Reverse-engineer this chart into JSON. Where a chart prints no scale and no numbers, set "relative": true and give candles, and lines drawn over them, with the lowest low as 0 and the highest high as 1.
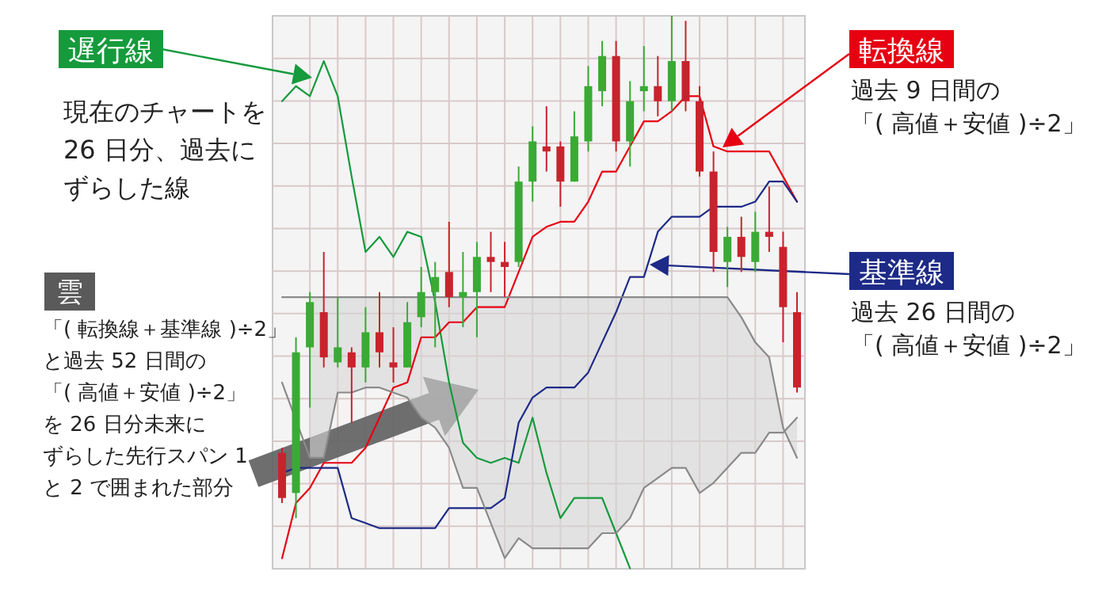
{
  "chart_data": {
    "type": "candlestick",
    "relative": true,
    "grid": true,
    "categories": [
      null,
      null,
      null,
      null,
      null,
      null,
      null,
      null,
      null,
      null,
      null,
      null,
      null,
      null,
      null,
      null,
      null,
      null,
      null,
      null,
      null,
      null,
      null,
      null,
      null,
      null,
      null,
      null,
      null,
      null,
      null,
      null,
      null,
      null,
      null,
      null,
      null,
      null
    ],
    "ohlc": [
      [
        0.13,
        0.14,
        0.03,
        0.04
      ],
      [
        0.05,
        0.36,
        0,
        0.33
      ],
      [
        0.34,
        0.45,
        0.22,
        0.43
      ],
      [
        0.41,
        0.53,
        0.3,
        0.32
      ],
      [
        0.31,
        0.44,
        0.3,
        0.34
      ],
      [
        0.33,
        0.34,
        0.19,
        0.3
      ],
      [
        0.3,
        0.42,
        0.27,
        0.37
      ],
      [
        0.37,
        0.45,
        0.3,
        0.33
      ],
      [
        0.31,
        0.38,
        0.27,
        0.3
      ],
      [
        0.3,
        0.43,
        0.3,
        0.39
      ],
      [
        0.4,
        0.5,
        0.38,
        0.45
      ],
      [
        0.45,
        0.51,
        0.34,
        0.48
      ],
      [
        0.49,
        0.59,
        0.42,
        0.44
      ],
      [
        0.44,
        0.53,
        0.38,
        0.45
      ],
      [
        0.45,
        0.55,
        0.36,
        0.52
      ],
      [
        0.52,
        0.57,
        0.45,
        0.51
      ],
      [
        0.51,
        0.55,
        0.44,
        0.5
      ],
      [
        0.51,
        0.7,
        0.5,
        0.67
      ],
      [
        0.67,
        0.78,
        0.63,
        0.75
      ],
      [
        0.74,
        0.82,
        0.69,
        0.73
      ],
      [
        0.74,
        0.75,
        0.62,
        0.67
      ],
      [
        0.67,
        0.81,
        0.67,
        0.76
      ],
      [
        0.75,
        0.9,
        0.73,
        0.86
      ],
      [
        0.85,
        0.95,
        0.82,
        0.92
      ],
      [
        0.92,
        0.95,
        0.73,
        0.75
      ],
      [
        0.75,
        0.87,
        0.7,
        0.83
      ],
      [
        0.85,
        0.94,
        0.81,
        0.86
      ],
      [
        0.86,
        0.92,
        0.8,
        0.83
      ],
      [
        0.83,
        1,
        0.81,
        0.91
      ],
      [
        0.91,
        0.99,
        0.81,
        0.83
      ],
      [
        0.83,
        0.86,
        0.68,
        0.69
      ],
      [
        0.69,
        0.73,
        0.49,
        0.53
      ],
      [
        0.51,
        0.58,
        0.46,
        0.56
      ],
      [
        0.56,
        0.6,
        0.49,
        0.52
      ],
      [
        0.51,
        0.61,
        0.49,
        0.57
      ],
      [
        0.57,
        0.66,
        0.53,
        0.56
      ],
      [
        0.54,
        0.57,
        0.35,
        0.42
      ],
      [
        0.41,
        0.45,
        0.25,
        0.26
      ]
    ],
    "colors": [
      "#c8232c",
      "#3aaa35",
      "#3aaa35",
      "#c8232c",
      "#3aaa35",
      "#c8232c",
      "#3aaa35",
      "#c8232c",
      "#c8232c",
      "#3aaa35",
      "#3aaa35",
      "#3aaa35",
      "#c8232c",
      "#3aaa35",
      "#3aaa35",
      "#c8232c",
      "#c8232c",
      "#3aaa35",
      "#3aaa35",
      "#c8232c",
      "#c8232c",
      "#3aaa35",
      "#3aaa35",
      "#3aaa35",
      "#c8232c",
      "#3aaa35",
      "#3aaa35",
      "#c8232c",
      "#3aaa35",
      "#c8232c",
      "#c8232c",
      "#c8232c",
      "#3aaa35",
      "#c8232c",
      "#3aaa35",
      "#c8232c",
      "#c8232c",
      "#c8232c"
    ],
    "series": [
      {
        "type": "line",
        "name": "遅行線",
        "color": "#159a3c",
        "values": [
          0.83,
          0.86,
          0.84,
          0.91,
          0.84,
          0.68,
          0.53,
          0.56,
          0.52,
          0.57,
          0.56,
          0.43,
          0.27,
          0.15,
          0.12,
          0.11,
          0.12,
          0.11,
          0.2,
          0.09,
          0.0,
          0.04,
          0.04,
          0.04,
          -0.03,
          -0.1,
          null,
          null,
          null,
          null,
          null,
          null,
          null,
          null,
          null,
          null,
          null,
          null
        ]
      },
      {
        "type": "line",
        "name": "転換線",
        "color": "#e60012",
        "values": [
          -0.08,
          0.03,
          0.06,
          0.11,
          0.11,
          0.11,
          0.14,
          0.2,
          0.26,
          0.27,
          0.36,
          0.36,
          0.39,
          0.39,
          0.42,
          0.42,
          0.42,
          0.49,
          0.56,
          0.58,
          0.59,
          0.59,
          0.63,
          0.69,
          0.69,
          0.74,
          0.79,
          0.79,
          0.81,
          0.84,
          0.84,
          0.74,
          0.73,
          0.73,
          0.73,
          0.73,
          0.68,
          0.63
        ]
      },
      {
        "type": "line",
        "name": "基準線",
        "color": "#1d2a87",
        "values": [
          0.09,
          0.1,
          0.1,
          0.1,
          0.1,
          0.0,
          -0.01,
          -0.02,
          -0.02,
          -0.02,
          -0.02,
          -0.02,
          0.02,
          0.02,
          0.02,
          0.02,
          0.04,
          0.19,
          0.24,
          0.26,
          0.26,
          0.26,
          0.29,
          0.35,
          0.41,
          0.48,
          0.48,
          0.57,
          0.6,
          0.6,
          0.6,
          0.62,
          0.62,
          0.62,
          0.63,
          0.67,
          0.67,
          0.63
        ]
      },
      {
        "type": "line",
        "color": "#8a8a8a",
        "values": [
          0.44,
          0.44,
          0.44,
          0.44,
          0.44,
          0.44,
          0.44,
          0.44,
          0.44,
          0.44,
          0.44,
          0.44,
          0.44,
          0.44,
          0.44,
          0.44,
          0.44,
          0.44,
          0.44,
          0.44,
          0.44,
          0.44,
          0.44,
          0.44,
          0.44,
          0.44,
          0.44,
          0.44,
          0.44,
          0.44,
          0.44,
          0.44,
          0.44,
          0.4,
          0.35,
          0.32,
          0.18,
          0.12
        ]
      },
      {
        "type": "line",
        "color": "#8a8a8a",
        "values": [
          0.27,
          null,
          0.12,
          0.12,
          0.25,
          0.25,
          0.26,
          0.26,
          0.25,
          0.24,
          0.2,
          0.18,
          0.14,
          0.06,
          0.06,
          -0.01,
          -0.08,
          -0.04,
          -0.06,
          -0.06,
          -0.06,
          -0.06,
          -0.06,
          -0.03,
          -0.03,
          0.0,
          0.06,
          0.08,
          0.1,
          0.1,
          0.05,
          0.07,
          0.1,
          0.13,
          0.13,
          0.17,
          0.17,
          0.2
        ]
      }
    ],
    "annotations": [
      "現在のチャートを26 日分、過去にずらした線",
      "過去 9 日間の「( 高値＋安値 )÷2」",
      "過去 26 日間の「( 高値＋安値 )÷2」",
      "雲",
      "「( 転換線＋基準線 )÷2」と過去 52 日間の「( 高値＋安値 )÷2」を 26 日分未来にずらした先行スパン 1と 2 で囲まれた部分"
    ]
  }
}
